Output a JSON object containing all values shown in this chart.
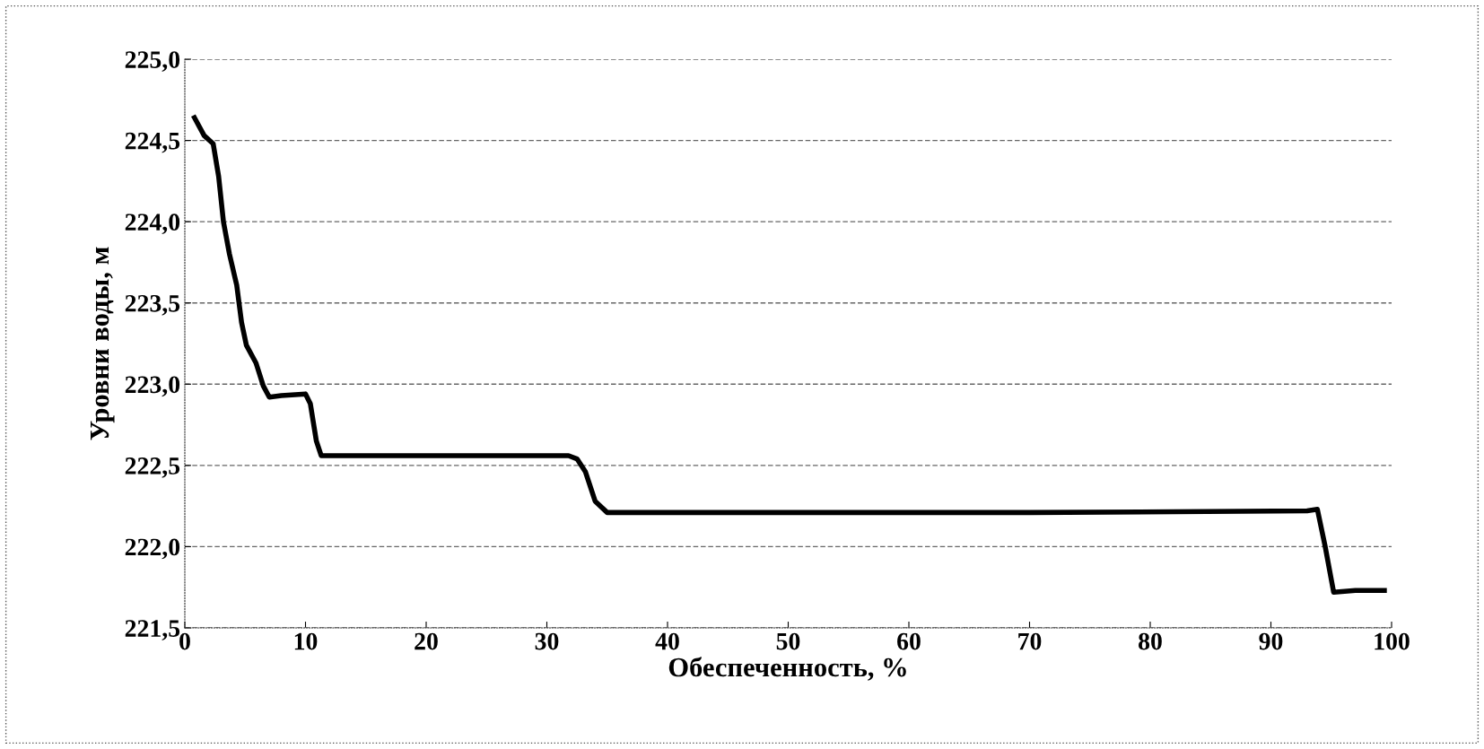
{
  "chart_data": {
    "type": "line",
    "xlabel": "Обеспеченность, %",
    "ylabel": "Уровни воды, м",
    "x": [
      0.8,
      1.6,
      2.35,
      2.8,
      3.2,
      3.7,
      4.3,
      4.7,
      5.1,
      5.9,
      6.5,
      7.0,
      8.0,
      10.0,
      10.4,
      10.9,
      11.3,
      15.6,
      25.0,
      31.8,
      32.5,
      33.2,
      34.0,
      35.0,
      50.0,
      70.0,
      93.0,
      93.85,
      94.5,
      95.2,
      97.0,
      99.4
    ],
    "series": [
      {
        "color": "#000000",
        "values": [
          224.64,
          224.53,
          224.48,
          224.28,
          224.0,
          223.8,
          223.61,
          223.38,
          223.24,
          223.13,
          222.99,
          222.92,
          222.93,
          222.94,
          222.88,
          222.65,
          222.56,
          222.56,
          222.56,
          222.56,
          222.54,
          222.46,
          222.28,
          222.21,
          222.21,
          222.21,
          222.22,
          222.23,
          222.0,
          221.72,
          221.73,
          221.73
        ]
      }
    ],
    "xlim": [
      0,
      100
    ],
    "xticks": [
      0,
      10,
      20,
      30,
      40,
      50,
      60,
      70,
      80,
      90,
      100
    ],
    "ylim": [
      221.5,
      225.0
    ],
    "yticks": [
      {
        "value": 221.5,
        "label": "221,5"
      },
      {
        "value": 222.0,
        "label": "222,0"
      },
      {
        "value": 222.5,
        "label": "222,5"
      },
      {
        "value": 223.0,
        "label": "223,0"
      },
      {
        "value": 223.5,
        "label": "223,5"
      },
      {
        "value": 224.0,
        "label": "224,0"
      },
      {
        "value": 224.5,
        "label": "224,5"
      },
      {
        "value": 225.0,
        "label": "225,0"
      }
    ],
    "grid": "y",
    "marker": "none",
    "line_style": "solid"
  }
}
